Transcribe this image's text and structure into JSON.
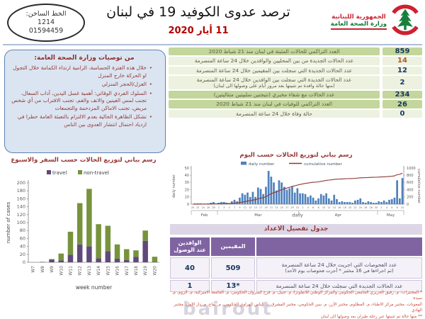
{
  "header": {
    "hotline": [
      "الخط الساخن:",
      "1214",
      "01594459"
    ],
    "title": "ترصد عدوى الكوفيد 19 في لبنان",
    "date": "11 أيار 2020",
    "ministry_line1": "الجمهورية اللبنانية",
    "ministry_line2": "وزارة الصحة العامة",
    "emblem_icon": "lebanon-cedar-emblem"
  },
  "recommendations": {
    "title": "من توصيات وزارة الصحة العامة:",
    "bullets": [
      "خلال هذه الفترة الحساسة، الزامية ارتداء الكمامة خلال التجول او الحركة خارج المنزل",
      "العزل/الحجر المنزلي",
      "السلوك الفردي الوقائي: أهمية غسل اليدين، آداب السعال، تجنب لمس العينين والانف والفم، تجنب الاقتراب من أي شخص مريض، تجنب الاماكن المزدحمة والتجمعات",
      "تشكل الظاهرة الحالية بعدم الالتزام بالتعبئة العامة خطرا في ازدياد احتمال انتشار العدوى بين الناس"
    ]
  },
  "stats_rows": [
    {
      "value": "859",
      "label": "العدد التراكمي للحالات المثبتة في لبنان منذ 21 شباط 2020",
      "sub": "",
      "shade": "dark",
      "red": false
    },
    {
      "value": "14",
      "label": "عدد الحالات الجديدة من بين المحليين والوافدين خلال 24 ساعة المنصرمة",
      "sub": "",
      "shade": "light",
      "red": true
    },
    {
      "value": "12",
      "label": "عدد الحالات الجديدة التي سجلت بين المقيمين خلال 24 ساعة المنصرمة",
      "sub": "",
      "shade": "light",
      "red": false
    },
    {
      "value": "2",
      "label": "عدد الحالات الجديدة التي سجلت بين الوافدين خلال 24 ساعة المنصرمة",
      "sub": "(منها حالة وافدة تم تثبيتها بعد مرور أيام على وصولها الى لبنان)",
      "shade": "light",
      "red": false
    },
    {
      "value": "234",
      "label": "عدد الحالات مع شفاء مخبري (نتيجتين سلبيتين متتاليتين)",
      "sub": "",
      "shade": "dark",
      "red": false
    },
    {
      "value": "26",
      "label": "العدد التراكمي للوفيات في لبنان منذ 21 شباط 2020",
      "sub": "",
      "shade": "dark",
      "red": false
    },
    {
      "value": "0",
      "label": "حالة وفاة خلال 24 ساعة المنصرمة",
      "sub": "",
      "shade": "light",
      "red": false
    }
  ],
  "captions": {
    "week_chart": "رسم بياني لتوزيع الحالات حسب السفر والاسبوع",
    "day_chart": "رسم بياني لتوزيع الحالات حسب اليوم"
  },
  "chart_data": [
    {
      "id": "weekly",
      "type": "bar",
      "stacked": true,
      "categories": [
        "W7",
        "W8",
        "W9",
        "W10",
        "W11",
        "W12",
        "W13",
        "W14",
        "W15",
        "W16",
        "W17",
        "W18",
        "W19",
        "W20"
      ],
      "series": [
        {
          "name": "travel",
          "color": "#60497b",
          "values": [
            0,
            1,
            7,
            5,
            19,
            45,
            40,
            10,
            28,
            9,
            6,
            14,
            54,
            1
          ]
        },
        {
          "name": "non-travel",
          "color": "#77933c",
          "values": [
            0,
            0,
            1,
            17,
            58,
            104,
            145,
            86,
            64,
            36,
            27,
            16,
            26,
            13
          ]
        }
      ],
      "xlabel": "week number",
      "ylabel": "number of cases",
      "ylim": [
        0,
        200
      ],
      "ystep": 20,
      "legend_position": "top",
      "grid": false
    },
    {
      "id": "daily",
      "type": "combo",
      "bar_series": {
        "name": "daily number",
        "color": "#4f81bd",
        "values": [
          0,
          1,
          1,
          1,
          0,
          0,
          1,
          2,
          3,
          0,
          2,
          3,
          3,
          2,
          1,
          4,
          6,
          4,
          9,
          15,
          13,
          16,
          10,
          17,
          10,
          23,
          21,
          14,
          24,
          46,
          38,
          30,
          19,
          33,
          30,
          24,
          20,
          22,
          24,
          16,
          22,
          15,
          15,
          14,
          10,
          12,
          9,
          5,
          8,
          14,
          12,
          15,
          8,
          5,
          13,
          7,
          3,
          4,
          3,
          3,
          3,
          2,
          5,
          6,
          8,
          3,
          2,
          4,
          3,
          2,
          2,
          4,
          3,
          5,
          3,
          6,
          7,
          9,
          33,
          8,
          36
        ]
      },
      "line_series": {
        "name": "cumulative number",
        "color": "#8c3836",
        "note": "cumulative sum of daily values, ends at 859"
      },
      "left_axis": {
        "label": "daily number",
        "range": [
          0,
          50
        ],
        "step": 10
      },
      "right_axis": {
        "label": "cumulative number",
        "range": [
          0,
          1000
        ],
        "step": 200
      },
      "x_tick_days": [
        20,
        22,
        24,
        26,
        28,
        1,
        3,
        5,
        7,
        9,
        11,
        13,
        15,
        17,
        19,
        21,
        23,
        25,
        27,
        29,
        31,
        2,
        4,
        6,
        8,
        10,
        12,
        14,
        16,
        18,
        20,
        22,
        24,
        26,
        28,
        30,
        2,
        4,
        6,
        8,
        10
      ],
      "month_segments": [
        {
          "label": "Feb",
          "from": 0,
          "to": 9
        },
        {
          "label": "Mar",
          "from": 10,
          "to": 40
        },
        {
          "label": "Apr",
          "from": 41,
          "to": 70
        },
        {
          "label": "May",
          "from": 71,
          "to": 80
        }
      ],
      "xlabel": "daily",
      "legend_position": "top",
      "grid": false
    }
  ],
  "details_table": {
    "title": "جدول تفصيل الاعداد",
    "col_residents": "المقيمين",
    "col_arrivals": "الوافدين\nعند الوصول",
    "rows": [
      {
        "label": "عدد الفحوصات التي اجريت خلال 24 ساعة المنصرمة",
        "sub": "(تم اجراءها في 16 مختبر * أجرت فحوصات يوم الأحد)",
        "residents": "509",
        "arrivals": "40"
      },
      {
        "label": "عدد الحالات الجديدة التي سجلت خلال 24 ساعة المنصرمة",
        "sub": "",
        "residents": "*13",
        "arrivals": "1"
      }
    ],
    "footnote_lines": [
      "* المختبرات: م. رفيق الحريري الجامعي الحكومي والمركز الوطني للانفلونزا، م. جبيل، م. فرح كسروان الحكومي، م. الجامعة الاميركية، م. الروم، م. سيدة",
      "المعونات، مختبر مركز الاطباء، م. المظلوم، مختبر الأرز، م. بنين الحكومي، مختبر المشرق، د. الياس الهراوي الحكومي، م. بقاع، م. دار الامل، مختبر الهادي",
      "** منها حالة تم تثبيتها عبر رحلة طيران بعد وصولها الى لبنان"
    ]
  },
  "watermark": "bairout",
  "colors": {
    "stat_green_dark": "#c3d69b",
    "stat_green_light": "#edf2e0",
    "accent_red": "#b30000",
    "maroon_text": "#953735",
    "box_blue_bg": "#dbe5f1",
    "table_purple": "#8064a2",
    "band_lavender": "#dcd6e6",
    "daily_bar_blue": "#4f81bd",
    "cumulative_line": "#8c3836",
    "travel_purple": "#60497b",
    "non_travel_green": "#77933c"
  }
}
